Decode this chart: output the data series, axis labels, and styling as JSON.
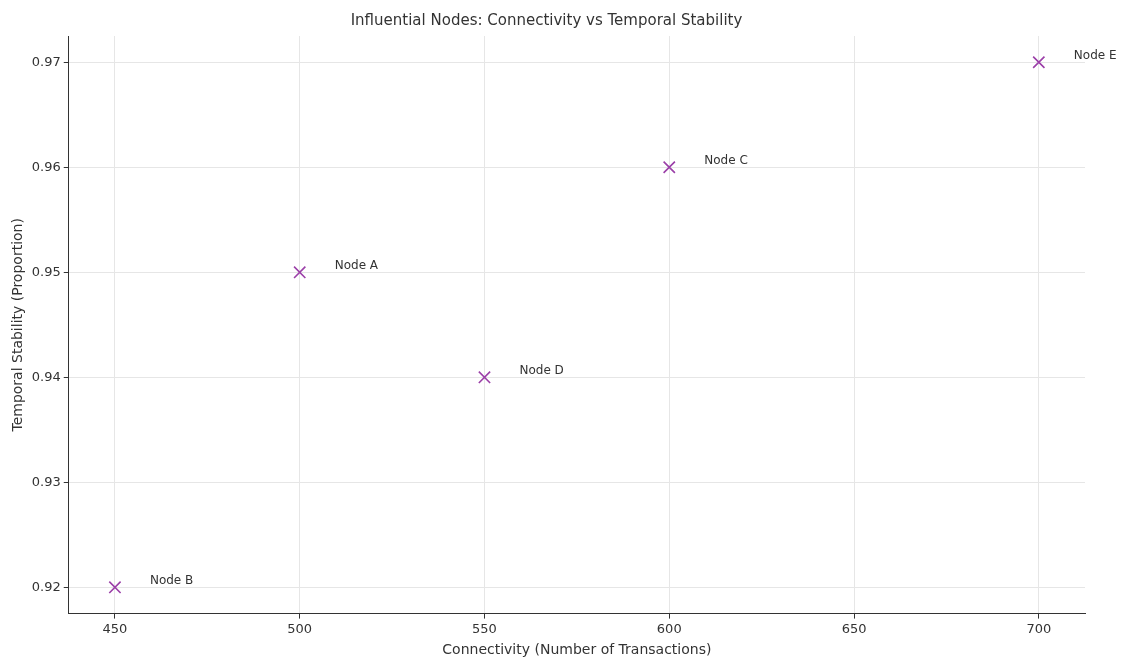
{
  "chart_data": {
    "type": "scatter",
    "title": "Influential Nodes: Connectivity vs Temporal Stability",
    "xlabel": "Connectivity (Number of Transactions)",
    "ylabel": "Temporal Stability (Proportion)",
    "x": [
      500,
      450,
      600,
      550,
      700
    ],
    "series": [
      {
        "color": "#9b3fa8",
        "values": [
          0.95,
          0.92,
          0.96,
          0.94,
          0.97
        ]
      }
    ],
    "xlim": [
      437.5,
      712.5
    ],
    "xticks": [
      450,
      500,
      550,
      600,
      650,
      700
    ],
    "ylim": [
      0.9175,
      0.9725
    ],
    "yticks": [
      0.92,
      0.93,
      0.94,
      0.95,
      0.96,
      0.97
    ],
    "grid": true,
    "legend": false,
    "marker": "cross",
    "annotations": [
      {
        "text": "Node A",
        "x": 500,
        "y": 0.95
      },
      {
        "text": "Node B",
        "x": 450,
        "y": 0.92
      },
      {
        "text": "Node C",
        "x": 600,
        "y": 0.96
      },
      {
        "text": "Node D",
        "x": 550,
        "y": 0.94
      },
      {
        "text": "Node E",
        "x": 700,
        "y": 0.97
      }
    ]
  }
}
